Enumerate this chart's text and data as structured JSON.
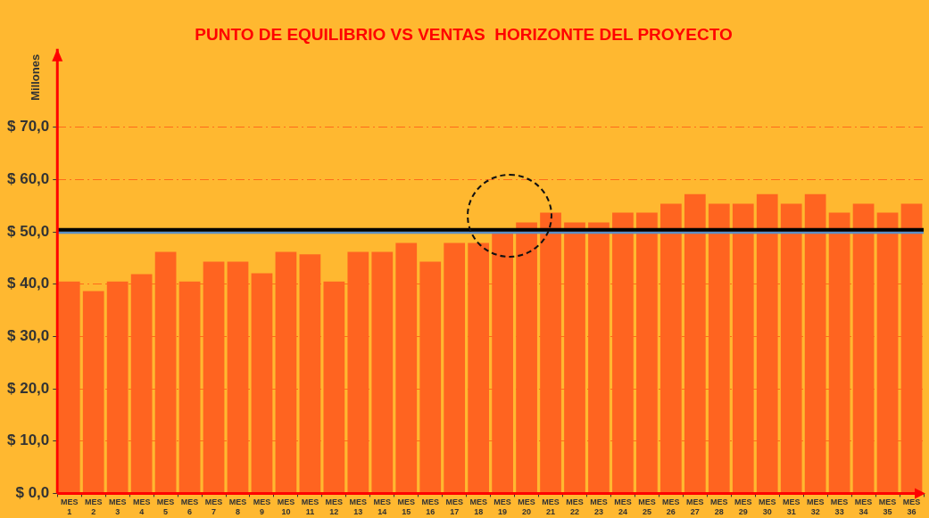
{
  "chart_data": {
    "type": "bar",
    "title": "PUNTO DE EQUILIBRIO VS VENTAS  HORIZONTE DEL PROYECTO",
    "ylabel": "Millones",
    "categories": [
      "MES 1",
      "MES 2",
      "MES 3",
      "MES 4",
      "MES 5",
      "MES 6",
      "MES 7",
      "MES 8",
      "MES 9",
      "MES 10",
      "MES 11",
      "MES 12",
      "MES 13",
      "MES 14",
      "MES 15",
      "MES 16",
      "MES 17",
      "MES 18",
      "MES 19",
      "MES 20",
      "MES 21",
      "MES 22",
      "MES 23",
      "MES 24",
      "MES 25",
      "MES 26",
      "MES 27",
      "MES 28",
      "MES 29",
      "MES 30",
      "MES 31",
      "MES 32",
      "MES 33",
      "MES 34",
      "MES 35",
      "MES 36"
    ],
    "series": [
      {
        "color": "#ff6420",
        "values": [
          40.5,
          38.7,
          40.5,
          41.9,
          46.2,
          40.5,
          44.3,
          44.3,
          42.1,
          46.2,
          45.7,
          40.5,
          46.2,
          46.2,
          47.9,
          44.3,
          47.9,
          47.9,
          50.0,
          51.8,
          53.7,
          51.8,
          51.8,
          53.7,
          53.7,
          55.4,
          57.2,
          55.4,
          55.4,
          57.2,
          55.4,
          57.2,
          53.7,
          55.4,
          53.7,
          55.4
        ]
      }
    ],
    "ylim": [
      0,
      85
    ],
    "yticks": [
      {
        "value": 0,
        "label": "$ 0,0"
      },
      {
        "value": 10,
        "label": "$ 10,0"
      },
      {
        "value": 20,
        "label": "$ 20,0"
      },
      {
        "value": 30,
        "label": "$ 30,0"
      },
      {
        "value": 40,
        "label": "$ 40,0"
      },
      {
        "value": 50,
        "label": "$ 50,0"
      },
      {
        "value": 60,
        "label": "$ 60,0"
      },
      {
        "value": 70,
        "label": "$ 70,0"
      }
    ],
    "grid": "y",
    "ref_lines": [
      {
        "axis": "y",
        "value": 49.9,
        "color": "#5b8fc7"
      },
      {
        "axis": "y",
        "value": 50.4,
        "color": "#000000"
      }
    ]
  }
}
